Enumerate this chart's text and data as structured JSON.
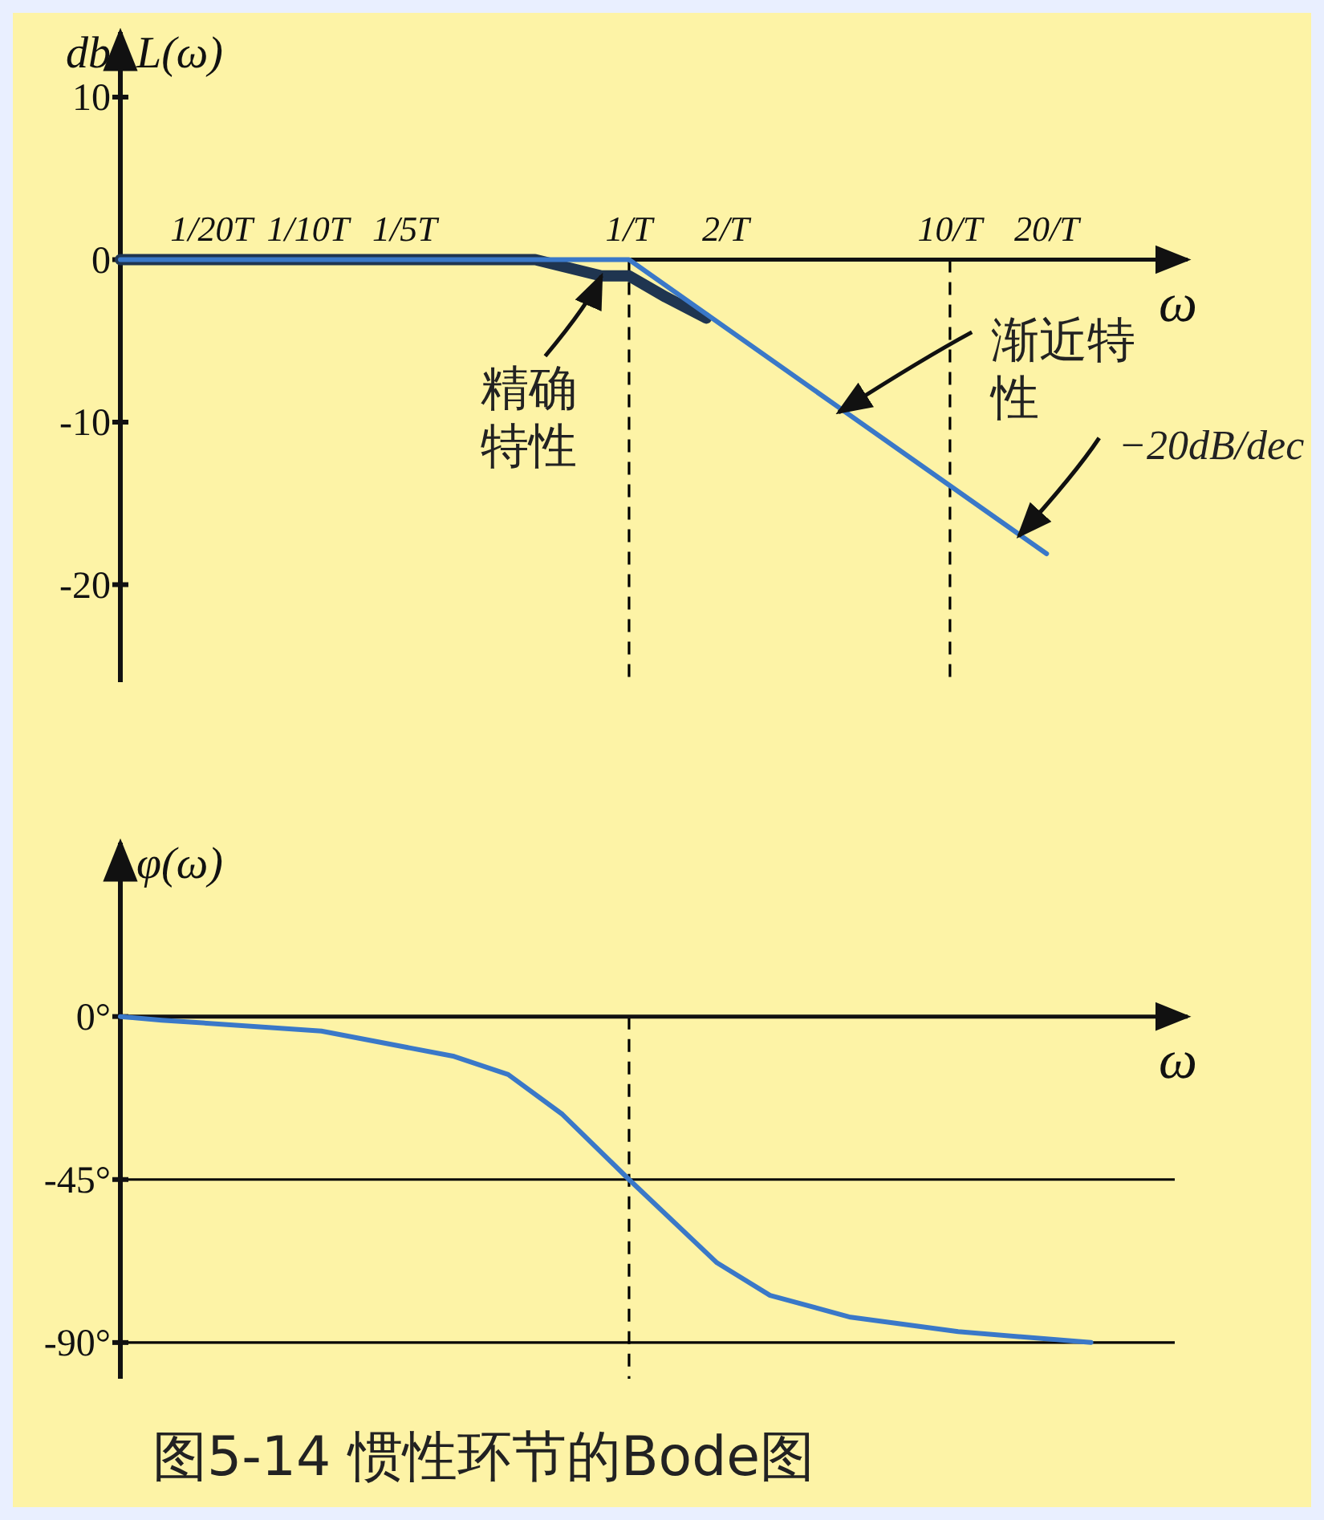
{
  "chart_data": [
    {
      "type": "line",
      "ylabel": "L(ω)",
      "xlabel": "ω",
      "log": "x",
      "xlim": [
        0.026,
        55
      ],
      "ylim": [
        -26,
        14
      ],
      "xticks": [
        {
          "value": 0.05,
          "label": "1/20T"
        },
        {
          "value": 0.1,
          "label": "1/10T"
        },
        {
          "value": 0.2,
          "label": "1/5T"
        },
        {
          "value": 1,
          "label": "1/T"
        },
        {
          "value": 2,
          "label": "2/T"
        },
        {
          "value": 10,
          "label": "10/T"
        },
        {
          "value": 20,
          "label": "20/T"
        }
      ],
      "yticks": [
        10,
        0,
        -10,
        -20
      ],
      "series": [
        {
          "color": "#1f3550",
          "x": [
            0.026,
            0.51,
            0.82,
            1,
            1.3,
            1.74
          ],
          "values": [
            0,
            0,
            -1,
            -1,
            -2.3,
            -3.6
          ]
        },
        {
          "color": "#3a78c8",
          "x": [
            0.026,
            1,
            20
          ],
          "values": [
            0,
            0,
            -18.1
          ]
        }
      ],
      "ref_lines": [
        {
          "axis": "x",
          "value": 1,
          "line_style": "dashed",
          "color": "#000000"
        },
        {
          "axis": "x",
          "value": 10,
          "line_style": "dashed",
          "color": "#000000"
        }
      ],
      "annotations": [
        {
          "text": "精确特性",
          "x": 0.82,
          "y": -1
        },
        {
          "text": "渐近特性",
          "x": 4.5,
          "y": -9.4
        },
        {
          "text": "−20dB/dec",
          "x": 16.4,
          "y": -17
        },
        "db"
      ]
    },
    {
      "type": "line",
      "ylabel": "φ(ω)",
      "xlabel": "ω",
      "log": "x",
      "xlim": [
        0.026,
        55
      ],
      "ylim": [
        -100,
        48
      ],
      "tick_labels": "y",
      "yticks": [
        {
          "value": 0,
          "label": "0°"
        },
        {
          "value": -45,
          "label": "-45°"
        },
        {
          "value": -90,
          "label": "-90°"
        }
      ],
      "series": [
        {
          "color": "#3a78c8",
          "x": [
            0.026,
            0.035,
            0.11,
            0.285,
            0.42,
            0.62,
            1,
            1.88,
            2.75,
            4.9,
            10.6,
            27.5
          ],
          "values": [
            0,
            -1,
            -4,
            -11,
            -16,
            -27,
            -45,
            -68,
            -77,
            -83,
            -87,
            -90
          ]
        }
      ],
      "ref_lines": [
        {
          "axis": "x",
          "value": 1,
          "line_style": "dashed",
          "color": "#000000"
        },
        {
          "axis": "y",
          "value": -45,
          "line_style": "solid",
          "color": "#000000"
        },
        {
          "axis": "y",
          "value": -90,
          "line_style": "solid",
          "color": "#000000"
        }
      ],
      "annotations": [
        "图5-14 惯性环节的Bode图"
      ]
    }
  ]
}
